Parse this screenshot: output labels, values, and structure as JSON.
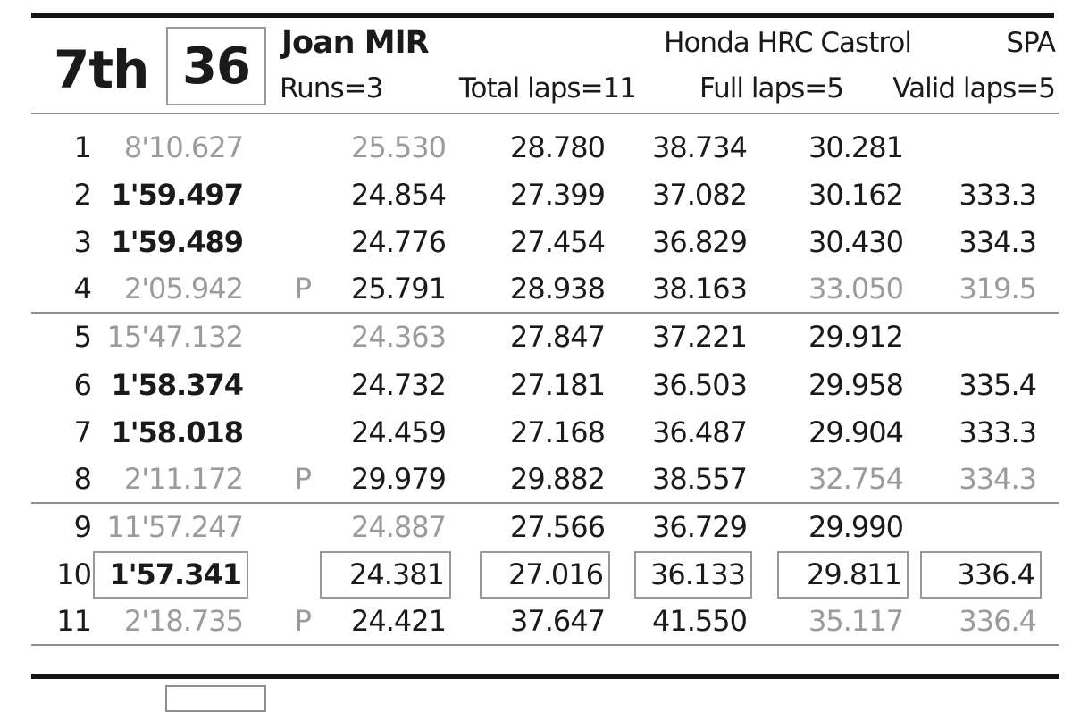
{
  "header": {
    "position": "7th",
    "number": "36",
    "rider": "Joan MIR",
    "team": "Honda HRC Castrol",
    "nation": "SPA",
    "runs": "Runs=3",
    "total_laps": "Total laps=11",
    "full_laps": "Full laps=5",
    "valid_laps": "Valid laps=5"
  },
  "colors": {
    "text": "#1a1a1a",
    "muted_text": "#9b9b9b",
    "thick_rule": "#151515",
    "thin_rule": "#8f8f8f",
    "box_border": "#999999",
    "background": "#ffffff"
  },
  "laps": {
    "rows": [
      {
        "lap": "1",
        "time": {
          "v": "8'10.627",
          "muted": true
        },
        "pit": "",
        "s1": {
          "v": "25.530",
          "muted": true
        },
        "s2": {
          "v": "28.780"
        },
        "s3": {
          "v": "38.734"
        },
        "s4": {
          "v": "30.281"
        },
        "speed": {
          "v": ""
        },
        "run_end": false,
        "boxed": false
      },
      {
        "lap": "2",
        "time": {
          "v": "1'59.497",
          "bold": true
        },
        "pit": "",
        "s1": {
          "v": "24.854"
        },
        "s2": {
          "v": "27.399"
        },
        "s3": {
          "v": "37.082"
        },
        "s4": {
          "v": "30.162"
        },
        "speed": {
          "v": "333.3"
        },
        "run_end": false,
        "boxed": false
      },
      {
        "lap": "3",
        "time": {
          "v": "1'59.489",
          "bold": true
        },
        "pit": "",
        "s1": {
          "v": "24.776"
        },
        "s2": {
          "v": "27.454"
        },
        "s3": {
          "v": "36.829"
        },
        "s4": {
          "v": "30.430"
        },
        "speed": {
          "v": "334.3"
        },
        "run_end": false,
        "boxed": false
      },
      {
        "lap": "4",
        "time": {
          "v": "2'05.942",
          "muted": true
        },
        "pit": "P",
        "s1": {
          "v": "25.791"
        },
        "s2": {
          "v": "28.938"
        },
        "s3": {
          "v": "38.163"
        },
        "s4": {
          "v": "33.050",
          "muted": true
        },
        "speed": {
          "v": "319.5",
          "muted": true
        },
        "run_end": true,
        "boxed": false
      },
      {
        "lap": "5",
        "time": {
          "v": "15'47.132",
          "muted": true
        },
        "pit": "",
        "s1": {
          "v": "24.363",
          "muted": true
        },
        "s2": {
          "v": "27.847"
        },
        "s3": {
          "v": "37.221"
        },
        "s4": {
          "v": "29.912"
        },
        "speed": {
          "v": ""
        },
        "run_end": false,
        "boxed": false
      },
      {
        "lap": "6",
        "time": {
          "v": "1'58.374",
          "bold": true
        },
        "pit": "",
        "s1": {
          "v": "24.732"
        },
        "s2": {
          "v": "27.181"
        },
        "s3": {
          "v": "36.503"
        },
        "s4": {
          "v": "29.958"
        },
        "speed": {
          "v": "335.4"
        },
        "run_end": false,
        "boxed": false
      },
      {
        "lap": "7",
        "time": {
          "v": "1'58.018",
          "bold": true
        },
        "pit": "",
        "s1": {
          "v": "24.459"
        },
        "s2": {
          "v": "27.168"
        },
        "s3": {
          "v": "36.487"
        },
        "s4": {
          "v": "29.904"
        },
        "speed": {
          "v": "333.3"
        },
        "run_end": false,
        "boxed": false
      },
      {
        "lap": "8",
        "time": {
          "v": "2'11.172",
          "muted": true
        },
        "pit": "P",
        "s1": {
          "v": "29.979"
        },
        "s2": {
          "v": "29.882"
        },
        "s3": {
          "v": "38.557"
        },
        "s4": {
          "v": "32.754",
          "muted": true
        },
        "speed": {
          "v": "334.3",
          "muted": true
        },
        "run_end": true,
        "boxed": false
      },
      {
        "lap": "9",
        "time": {
          "v": "11'57.247",
          "muted": true
        },
        "pit": "",
        "s1": {
          "v": "24.887",
          "muted": true
        },
        "s2": {
          "v": "27.566"
        },
        "s3": {
          "v": "36.729"
        },
        "s4": {
          "v": "29.990"
        },
        "speed": {
          "v": ""
        },
        "run_end": false,
        "boxed": false
      },
      {
        "lap": "10",
        "time": {
          "v": "1'57.341",
          "bold": true
        },
        "pit": "",
        "s1": {
          "v": "24.381"
        },
        "s2": {
          "v": "27.016"
        },
        "s3": {
          "v": "36.133"
        },
        "s4": {
          "v": "29.811"
        },
        "speed": {
          "v": "336.4"
        },
        "run_end": false,
        "boxed": true
      },
      {
        "lap": "11",
        "time": {
          "v": "2'18.735",
          "muted": true
        },
        "pit": "P",
        "s1": {
          "v": "24.421"
        },
        "s2": {
          "v": "37.647"
        },
        "s3": {
          "v": "41.550"
        },
        "s4": {
          "v": "35.117",
          "muted": true
        },
        "speed": {
          "v": "336.4",
          "muted": true
        },
        "run_end": true,
        "boxed": false
      }
    ]
  }
}
